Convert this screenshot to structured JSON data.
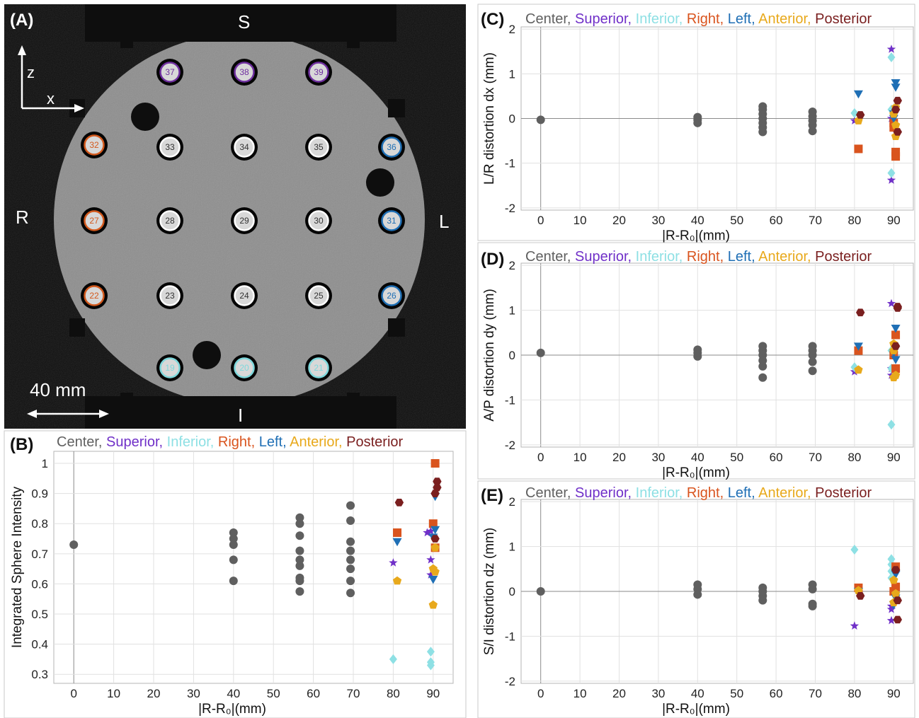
{
  "panels": {
    "A": "(A)",
    "B": "(B)",
    "C": "(C)",
    "D": "(D)",
    "E": "(E)"
  },
  "phantom": {
    "orientation": {
      "top": "S",
      "bottom": "I",
      "left": "R",
      "right": "L"
    },
    "axes": {
      "vertical": "z",
      "horizontal": "x"
    },
    "scale_label": "40 mm",
    "holes": [
      {
        "num": "37",
        "color": "#7030A0"
      },
      {
        "num": "38",
        "color": "#7030A0"
      },
      {
        "num": "39",
        "color": "#7030A0"
      },
      {
        "num": "32",
        "color": "#D35A1E"
      },
      {
        "num": "33",
        "color": "#ffffff"
      },
      {
        "num": "34",
        "color": "#ffffff"
      },
      {
        "num": "35",
        "color": "#ffffff"
      },
      {
        "num": "36",
        "color": "#1F6FB5"
      },
      {
        "num": "27",
        "color": "#D35A1E"
      },
      {
        "num": "28",
        "color": "#ffffff"
      },
      {
        "num": "29",
        "color": "#ffffff"
      },
      {
        "num": "30",
        "color": "#ffffff"
      },
      {
        "num": "31",
        "color": "#1F6FB5"
      },
      {
        "num": "22",
        "color": "#D35A1E"
      },
      {
        "num": "23",
        "color": "#ffffff"
      },
      {
        "num": "24",
        "color": "#ffffff"
      },
      {
        "num": "25",
        "color": "#ffffff"
      },
      {
        "num": "26",
        "color": "#1F6FB5"
      },
      {
        "num": "19",
        "color": "#7FD8DC"
      },
      {
        "num": "20",
        "color": "#7FD8DC"
      },
      {
        "num": "21",
        "color": "#7FD8DC"
      }
    ]
  },
  "legend": [
    {
      "text": "Center,",
      "color": "#606060"
    },
    {
      "text": "Superior,",
      "color": "#7030C8"
    },
    {
      "text": "Inferior,",
      "color": "#8EE0E4"
    },
    {
      "text": "Right,",
      "color": "#D9541E"
    },
    {
      "text": "Left,",
      "color": "#1F6FB5"
    },
    {
      "text": "Anterior,",
      "color": "#E8A91C"
    },
    {
      "text": "Posterior",
      "color": "#7A1F1F"
    }
  ],
  "chart_data": [
    {
      "panel": "B",
      "type": "scatter",
      "xlabel": "|R-R₀|(mm)",
      "ylabel": "Integrated Sphere Intensity",
      "xlim": [
        -5,
        95
      ],
      "ylim": [
        0.27,
        1.04
      ],
      "x_ticks": [
        "0",
        "10",
        "20",
        "30",
        "40",
        "50",
        "60",
        "70",
        "80",
        "90"
      ],
      "y_ticks": [
        "0.3",
        "0.4",
        "0.5",
        "0.6",
        "0.7",
        "0.8",
        "0.9",
        "1"
      ],
      "grid": true,
      "series": [
        {
          "name": "Center",
          "marker": "circle",
          "color": "#5f5f5f",
          "points": [
            [
              0,
              0.73
            ],
            [
              40,
              0.61
            ],
            [
              40,
              0.68
            ],
            [
              40,
              0.73
            ],
            [
              40,
              0.75
            ],
            [
              40,
              0.77
            ],
            [
              56.6,
              0.575
            ],
            [
              56.6,
              0.61
            ],
            [
              56.6,
              0.62
            ],
            [
              56.6,
              0.66
            ],
            [
              56.6,
              0.68
            ],
            [
              56.6,
              0.71
            ],
            [
              56.6,
              0.76
            ],
            [
              56.6,
              0.8
            ],
            [
              56.6,
              0.82
            ],
            [
              69.3,
              0.57
            ],
            [
              69.3,
              0.61
            ],
            [
              69.3,
              0.65
            ],
            [
              69.3,
              0.68
            ],
            [
              69.3,
              0.71
            ],
            [
              69.3,
              0.74
            ],
            [
              69.3,
              0.81
            ],
            [
              69.3,
              0.86
            ]
          ]
        },
        {
          "name": "Superior",
          "marker": "star",
          "color": "#7030C8",
          "points": [
            [
              80,
              0.67
            ],
            [
              89.4,
              0.63
            ],
            [
              89.4,
              0.68
            ],
            [
              89.4,
              0.775
            ],
            [
              88.5,
              0.77
            ]
          ]
        },
        {
          "name": "Inferior",
          "marker": "diamond",
          "color": "#8EE0E4",
          "points": [
            [
              80,
              0.35
            ],
            [
              89.4,
              0.33
            ],
            [
              89.4,
              0.34
            ],
            [
              89.4,
              0.375
            ]
          ]
        },
        {
          "name": "Right",
          "marker": "square",
          "color": "#D9541E",
          "points": [
            [
              81,
              0.77
            ],
            [
              90.5,
              1.0
            ],
            [
              90,
              0.8
            ],
            [
              90.5,
              0.72
            ]
          ]
        },
        {
          "name": "Left",
          "marker": "triangle",
          "color": "#1F6FB5",
          "points": [
            [
              81,
              0.74
            ],
            [
              90.5,
              0.89
            ],
            [
              90.5,
              0.78
            ],
            [
              90,
              0.755
            ],
            [
              90,
              0.615
            ]
          ]
        },
        {
          "name": "Anterior",
          "marker": "pentagon",
          "color": "#E8A91C",
          "points": [
            [
              81,
              0.61
            ],
            [
              90,
              0.53
            ],
            [
              90,
              0.65
            ],
            [
              90.5,
              0.64
            ],
            [
              90.5,
              0.72
            ]
          ]
        },
        {
          "name": "Posterior",
          "marker": "hexagon",
          "color": "#7A1F1F",
          "points": [
            [
              81.5,
              0.87
            ],
            [
              91,
              0.94
            ],
            [
              91,
              0.92
            ],
            [
              90.5,
              0.9
            ],
            [
              90.5,
              0.75
            ]
          ]
        }
      ]
    },
    {
      "panel": "C",
      "type": "scatter",
      "xlabel": "|R-R₀|(mm)",
      "ylabel": "L/R distortion dx (mm)",
      "xlim": [
        -5,
        95
      ],
      "ylim": [
        -2.05,
        2.05
      ],
      "x_ticks": [
        "0",
        "10",
        "20",
        "30",
        "40",
        "50",
        "60",
        "70",
        "80",
        "90"
      ],
      "y_ticks": [
        "-2",
        "-1",
        "0",
        "1",
        "2"
      ],
      "grid": true,
      "series": [
        {
          "name": "Center",
          "marker": "circle",
          "color": "#5f5f5f",
          "points": [
            [
              0,
              -0.03
            ],
            [
              40,
              -0.1
            ],
            [
              40,
              -0.03
            ],
            [
              40,
              0.03
            ],
            [
              56.6,
              -0.3
            ],
            [
              56.6,
              -0.2
            ],
            [
              56.6,
              -0.1
            ],
            [
              56.6,
              0.0
            ],
            [
              56.6,
              0.1
            ],
            [
              56.6,
              0.2
            ],
            [
              56.6,
              0.27
            ],
            [
              69.3,
              -0.28
            ],
            [
              69.3,
              -0.15
            ],
            [
              69.3,
              -0.05
            ],
            [
              69.3,
              0.05
            ],
            [
              69.3,
              0.15
            ]
          ]
        },
        {
          "name": "Superior",
          "marker": "star",
          "color": "#7030C8",
          "points": [
            [
              80,
              -0.05
            ],
            [
              89.4,
              1.55
            ],
            [
              89.4,
              -1.38
            ],
            [
              89.4,
              0.0
            ]
          ]
        },
        {
          "name": "Inferior",
          "marker": "diamond",
          "color": "#8EE0E4",
          "points": [
            [
              80,
              0.12
            ],
            [
              89.4,
              1.37
            ],
            [
              89.4,
              -1.22
            ],
            [
              89.4,
              0.2
            ]
          ]
        },
        {
          "name": "Right",
          "marker": "square",
          "color": "#D9541E",
          "points": [
            [
              81,
              -0.68
            ],
            [
              90.5,
              -0.75
            ],
            [
              90.5,
              -0.85
            ],
            [
              90,
              -0.1
            ],
            [
              90,
              -0.2
            ]
          ]
        },
        {
          "name": "Left",
          "marker": "triangle",
          "color": "#1F6FB5",
          "points": [
            [
              81,
              0.55
            ],
            [
              90.5,
              0.8
            ],
            [
              90.5,
              0.7
            ],
            [
              90,
              0.1
            ],
            [
              90,
              0.0
            ]
          ]
        },
        {
          "name": "Anterior",
          "marker": "pentagon",
          "color": "#E8A91C",
          "points": [
            [
              81,
              -0.05
            ],
            [
              90,
              0.1
            ],
            [
              90.5,
              0.25
            ],
            [
              90.5,
              -0.15
            ],
            [
              90.5,
              -0.4
            ]
          ]
        },
        {
          "name": "Posterior",
          "marker": "hexagon",
          "color": "#7A1F1F",
          "points": [
            [
              81.5,
              0.08
            ],
            [
              91,
              0.4
            ],
            [
              91,
              -0.3
            ],
            [
              90.5,
              0.2
            ]
          ]
        }
      ]
    },
    {
      "panel": "D",
      "type": "scatter",
      "xlabel": "|R-R₀|(mm)",
      "ylabel": "A/P distortion dy (mm)",
      "xlim": [
        -5,
        95
      ],
      "ylim": [
        -2.05,
        2.05
      ],
      "x_ticks": [
        "0",
        "10",
        "20",
        "30",
        "40",
        "50",
        "60",
        "70",
        "80",
        "90"
      ],
      "y_ticks": [
        "-2",
        "-1",
        "0",
        "1",
        "2"
      ],
      "grid": true,
      "series": [
        {
          "name": "Center",
          "marker": "circle",
          "color": "#5f5f5f",
          "points": [
            [
              0,
              0.05
            ],
            [
              40,
              -0.03
            ],
            [
              40,
              0.05
            ],
            [
              40,
              0.12
            ],
            [
              56.6,
              -0.5
            ],
            [
              56.6,
              -0.25
            ],
            [
              56.6,
              -0.12
            ],
            [
              56.6,
              0.0
            ],
            [
              56.6,
              0.1
            ],
            [
              56.6,
              0.2
            ],
            [
              69.3,
              -0.35
            ],
            [
              69.3,
              -0.15
            ],
            [
              69.3,
              0.0
            ],
            [
              69.3,
              0.1
            ],
            [
              69.3,
              0.2
            ]
          ]
        },
        {
          "name": "Superior",
          "marker": "star",
          "color": "#7030C8",
          "points": [
            [
              80,
              -0.37
            ],
            [
              89.4,
              1.15
            ],
            [
              89.4,
              -0.45
            ],
            [
              89.4,
              -0.3
            ]
          ]
        },
        {
          "name": "Inferior",
          "marker": "diamond",
          "color": "#8EE0E4",
          "points": [
            [
              80,
              -0.27
            ],
            [
              89.4,
              -1.55
            ],
            [
              89.4,
              -0.3
            ],
            [
              89.4,
              0.1
            ]
          ]
        },
        {
          "name": "Right",
          "marker": "square",
          "color": "#D9541E",
          "points": [
            [
              81,
              0.1
            ],
            [
              90.5,
              0.45
            ],
            [
              90.5,
              -0.3
            ],
            [
              90,
              0.0
            ]
          ]
        },
        {
          "name": "Left",
          "marker": "triangle",
          "color": "#1F6FB5",
          "points": [
            [
              81,
              0.2
            ],
            [
              90.5,
              0.6
            ],
            [
              90.5,
              -0.1
            ],
            [
              90,
              0.05
            ]
          ]
        },
        {
          "name": "Anterior",
          "marker": "pentagon",
          "color": "#E8A91C",
          "points": [
            [
              81,
              -0.33
            ],
            [
              90,
              0.25
            ],
            [
              90,
              -0.5
            ],
            [
              90.5,
              -0.45
            ],
            [
              90,
              0.1
            ]
          ]
        },
        {
          "name": "Posterior",
          "marker": "hexagon",
          "color": "#7A1F1F",
          "points": [
            [
              81.5,
              0.95
            ],
            [
              91,
              1.08
            ],
            [
              91,
              1.05
            ],
            [
              90.5,
              0.2
            ]
          ]
        }
      ]
    },
    {
      "panel": "E",
      "type": "scatter",
      "xlabel": "|R-R₀|(mm)",
      "ylabel": "S/I distortion dz (mm)",
      "xlim": [
        -5,
        95
      ],
      "ylim": [
        -2.05,
        2.05
      ],
      "x_ticks": [
        "0",
        "10",
        "20",
        "30",
        "40",
        "50",
        "60",
        "70",
        "80",
        "90"
      ],
      "y_ticks": [
        "-2",
        "-1",
        "0",
        "1",
        "2"
      ],
      "grid": true,
      "series": [
        {
          "name": "Center",
          "marker": "circle",
          "color": "#5f5f5f",
          "points": [
            [
              0,
              0.0
            ],
            [
              40,
              -0.07
            ],
            [
              40,
              0.05
            ],
            [
              40,
              0.15
            ],
            [
              56.6,
              -0.2
            ],
            [
              56.6,
              -0.1
            ],
            [
              56.6,
              0.0
            ],
            [
              56.6,
              0.08
            ],
            [
              69.3,
              -0.33
            ],
            [
              69.3,
              -0.28
            ],
            [
              69.3,
              0.05
            ],
            [
              69.3,
              0.15
            ]
          ]
        },
        {
          "name": "Superior",
          "marker": "star",
          "color": "#7030C8",
          "points": [
            [
              80,
              -0.77
            ],
            [
              89.4,
              -0.65
            ],
            [
              89.4,
              -0.4
            ],
            [
              89.4,
              -0.33
            ]
          ]
        },
        {
          "name": "Inferior",
          "marker": "diamond",
          "color": "#8EE0E4",
          "points": [
            [
              80,
              0.93
            ],
            [
              89.4,
              0.72
            ],
            [
              89.4,
              0.6
            ],
            [
              89.4,
              0.45
            ],
            [
              89.4,
              0.3
            ]
          ]
        },
        {
          "name": "Right",
          "marker": "square",
          "color": "#D9541E",
          "points": [
            [
              81,
              0.08
            ],
            [
              90.5,
              0.55
            ],
            [
              90.5,
              0.1
            ],
            [
              90,
              0.0
            ]
          ]
        },
        {
          "name": "Left",
          "marker": "triangle",
          "color": "#1F6FB5",
          "points": [
            [
              81,
              0.0
            ],
            [
              90.5,
              0.38
            ],
            [
              90.5,
              -0.15
            ],
            [
              90,
              -0.3
            ]
          ]
        },
        {
          "name": "Anterior",
          "marker": "pentagon",
          "color": "#E8A91C",
          "points": [
            [
              81,
              0.02
            ],
            [
              90,
              0.25
            ],
            [
              90,
              -0.25
            ],
            [
              90.5,
              -0.05
            ]
          ]
        },
        {
          "name": "Posterior",
          "marker": "hexagon",
          "color": "#7A1F1F",
          "points": [
            [
              81.5,
              -0.1
            ],
            [
              91,
              -0.2
            ],
            [
              91,
              -0.63
            ],
            [
              90.5,
              0.48
            ]
          ]
        }
      ]
    }
  ]
}
